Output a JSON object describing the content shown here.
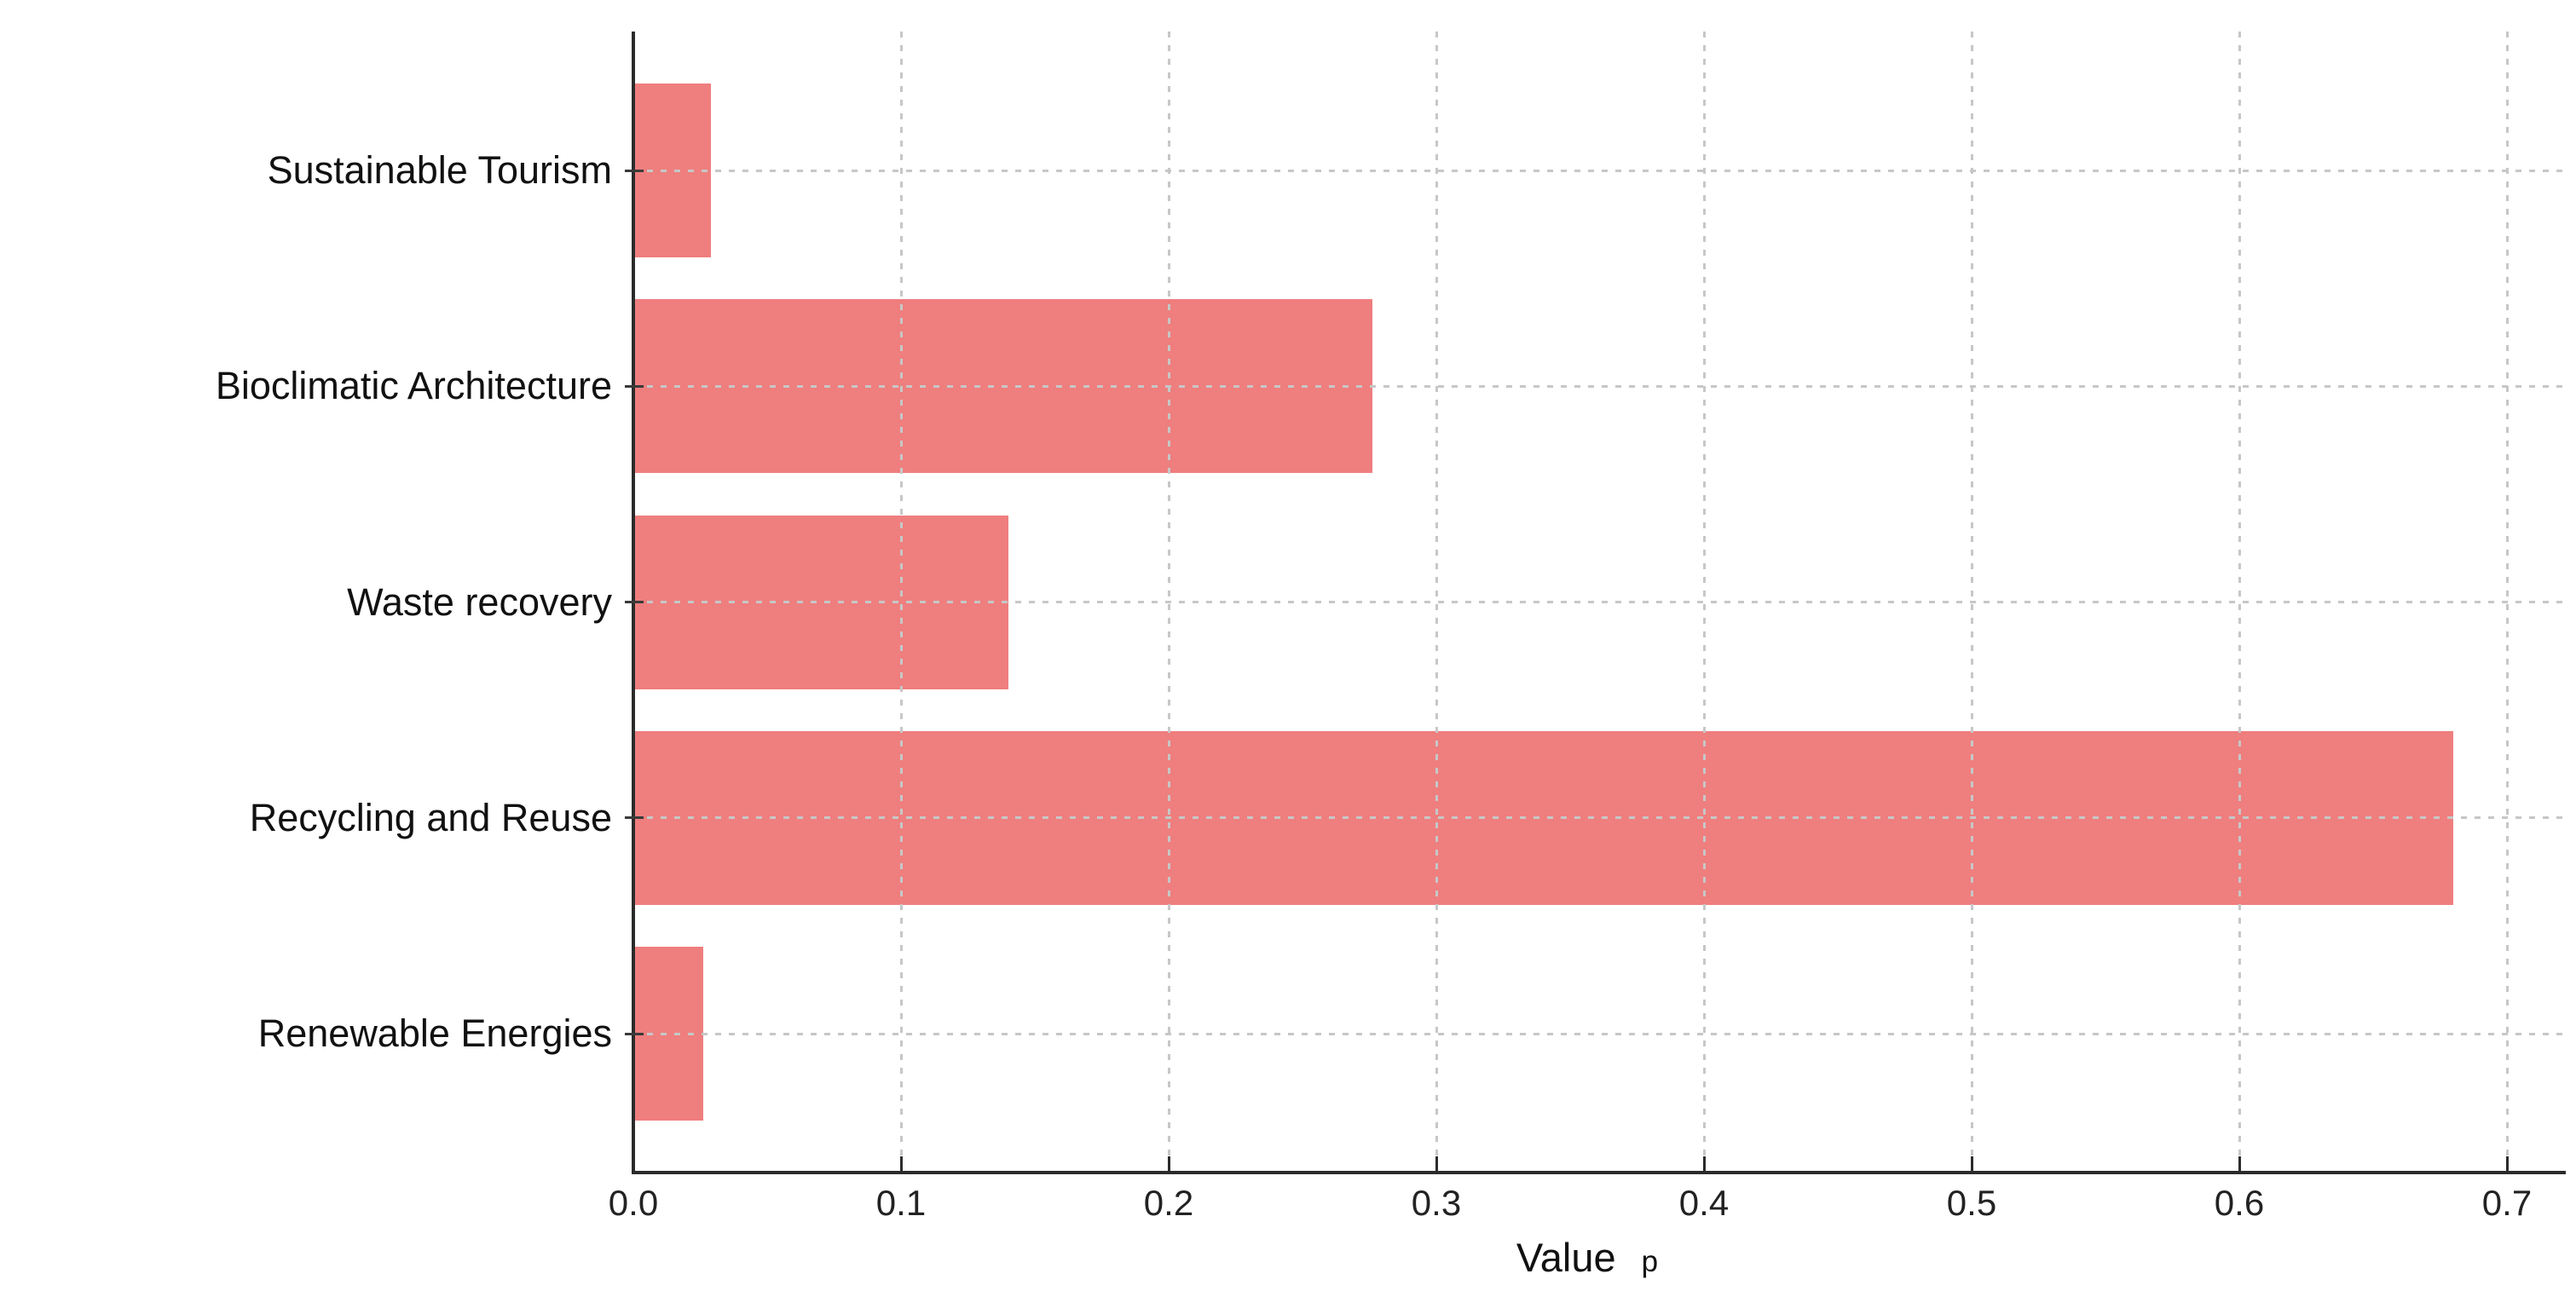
{
  "chart_data": {
    "type": "bar",
    "orientation": "horizontal",
    "title": "",
    "xlabel": "Value",
    "xlabel_suffix": "p",
    "ylabel": "",
    "categories": [
      "Sustainable Tourism",
      "Bioclimatic Architecture",
      "Waste recovery",
      "Recycling and Reuse",
      "Renewable Energies"
    ],
    "values": [
      0.029,
      0.276,
      0.14,
      0.68,
      0.026
    ],
    "xlim": [
      0.0,
      0.722
    ],
    "xticks": [
      0.0,
      0.1,
      0.2,
      0.3,
      0.4,
      0.5,
      0.6,
      0.7
    ],
    "xtick_labels": [
      "0.0",
      "0.1",
      "0.2",
      "0.3",
      "0.4",
      "0.5",
      "0.6",
      "0.7"
    ],
    "grid": true,
    "grid_style": "dotted",
    "legend": false,
    "bar_color": "#ef7e7e",
    "axis_color": "#2b2b2b",
    "grid_color": "#c7c7c7",
    "text_color": "#111111"
  }
}
